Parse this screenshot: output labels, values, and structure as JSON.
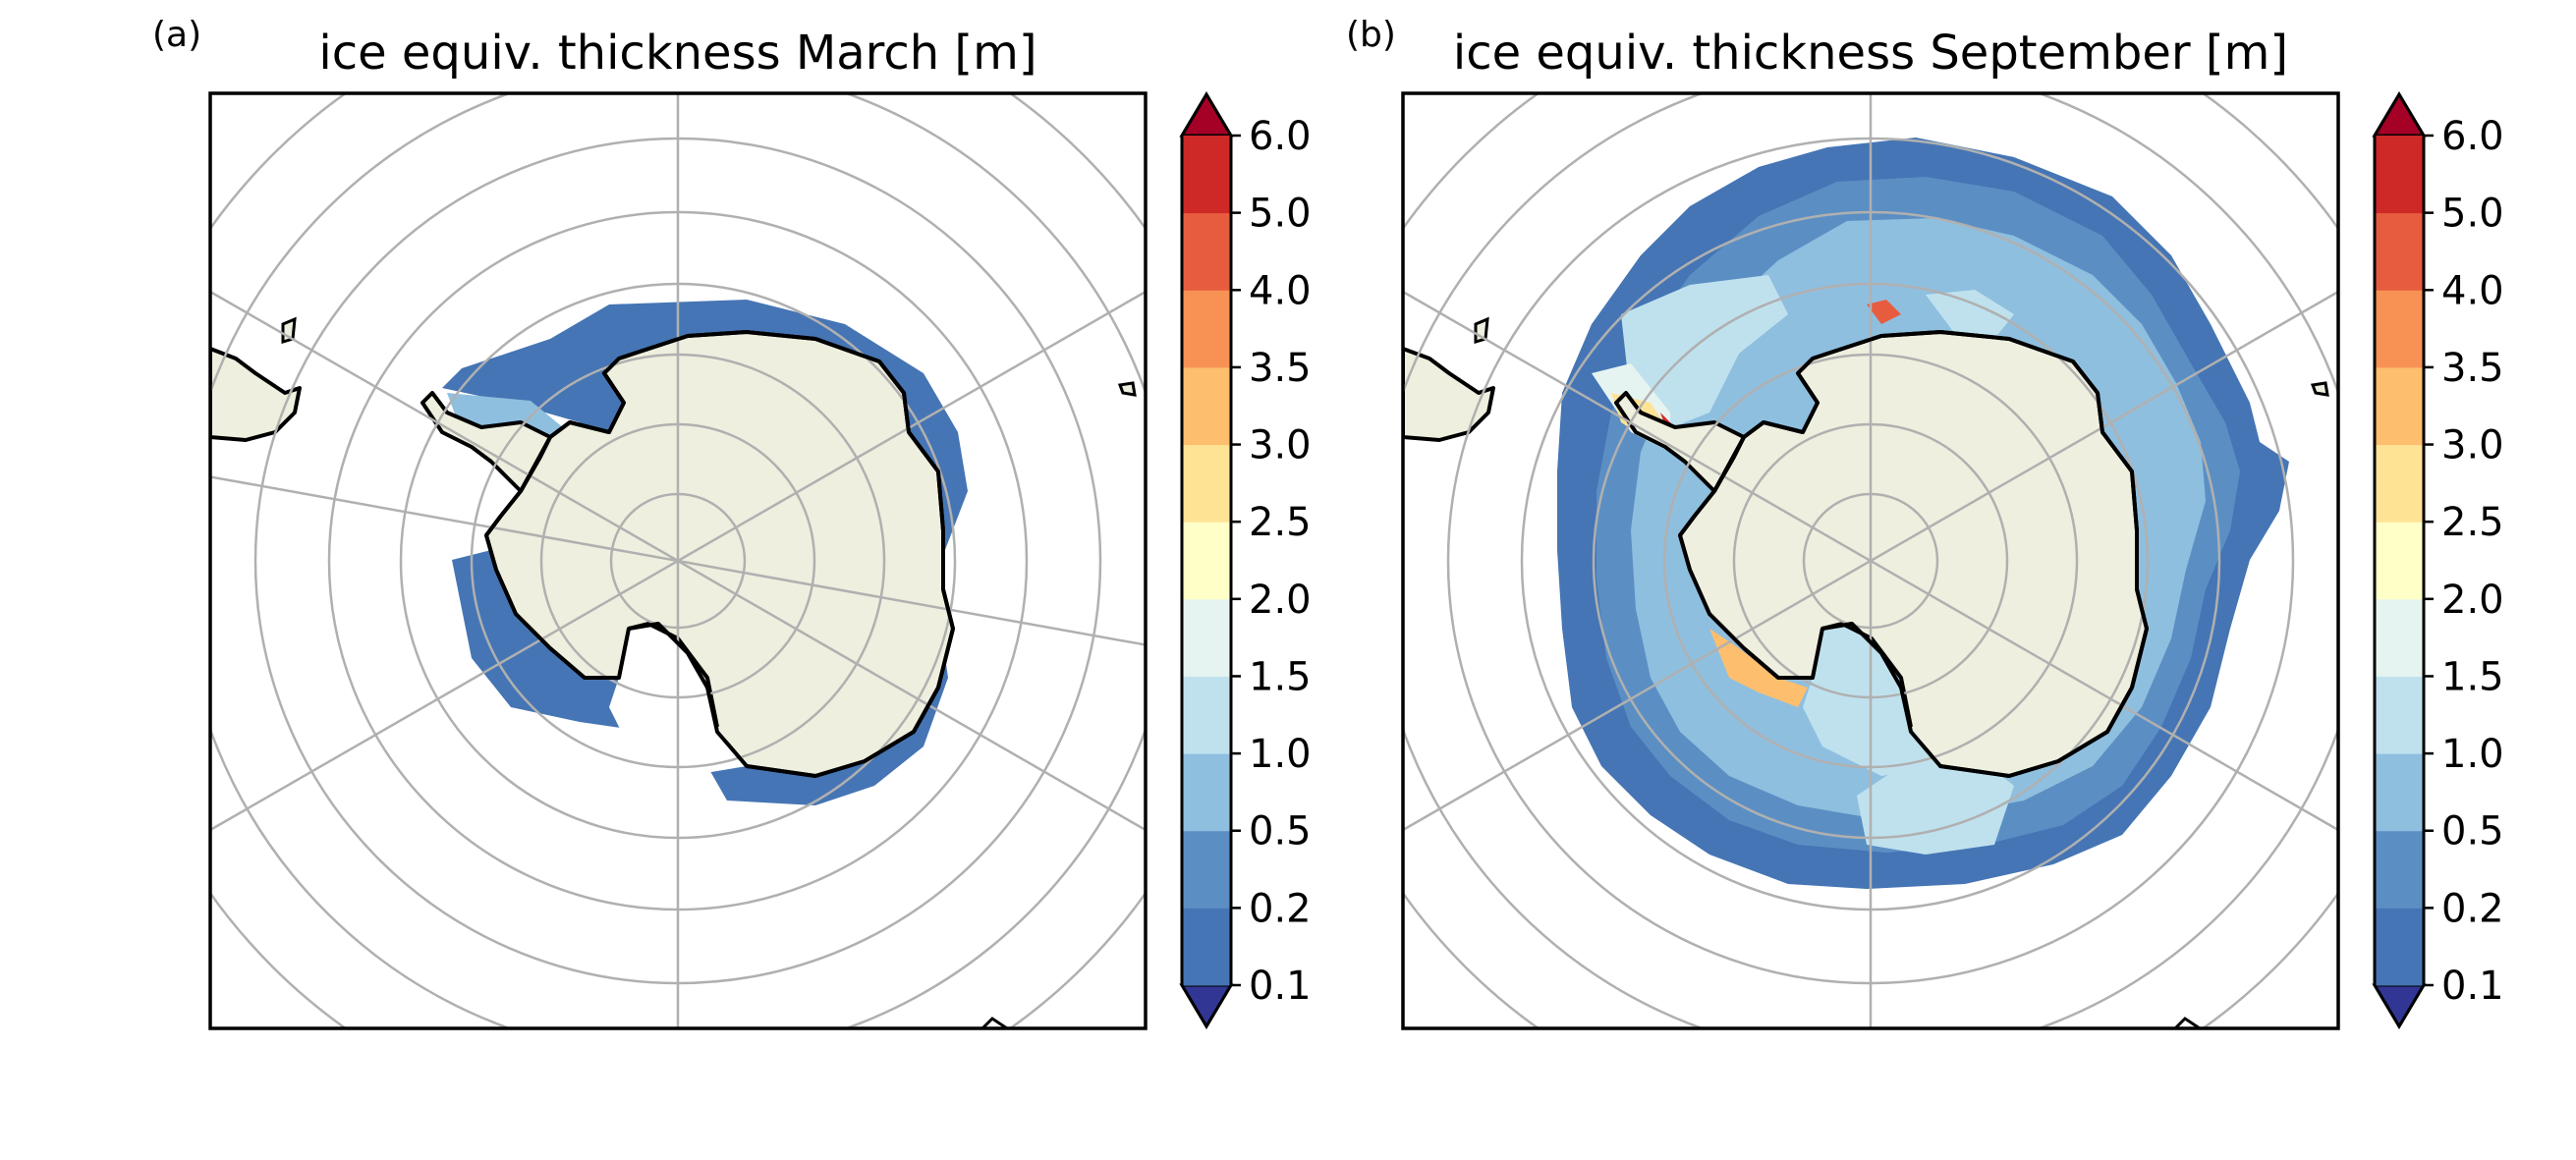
{
  "figure": {
    "panels": [
      {
        "id": "a",
        "label": "(a)",
        "title": "ice equiv. thickness March [m]",
        "colorbar": {
          "ticks": [
            "6.0",
            "5.0",
            "4.0",
            "3.5",
            "3.0",
            "2.5",
            "2.0",
            "1.5",
            "1.0",
            "0.5",
            "0.2",
            "0.1"
          ]
        }
      },
      {
        "id": "b",
        "label": "(b)",
        "title": "ice equiv. thickness September [m]",
        "colorbar": {
          "ticks": [
            "6.0",
            "5.0",
            "4.0",
            "3.5",
            "3.0",
            "2.5",
            "2.0",
            "1.5",
            "1.0",
            "0.5",
            "0.2",
            "0.1"
          ]
        }
      }
    ],
    "colormap": {
      "levels": [
        0.1,
        0.2,
        0.5,
        1.0,
        1.5,
        2.0,
        2.5,
        3.0,
        3.5,
        4.0,
        5.0,
        6.0
      ],
      "colors": [
        "#4575b4",
        "#5b8fc4",
        "#8fbfdf",
        "#bfe1ee",
        "#e6f4f1",
        "#ffffc8",
        "#fee395",
        "#fdbe6e",
        "#f89254",
        "#e75c3e",
        "#ce2827"
      ],
      "under_color": "#313695",
      "over_color": "#a50026"
    },
    "land_color": "#efefdf",
    "coast_color": "#000000",
    "grid_color": "#b0b0b0"
  }
}
